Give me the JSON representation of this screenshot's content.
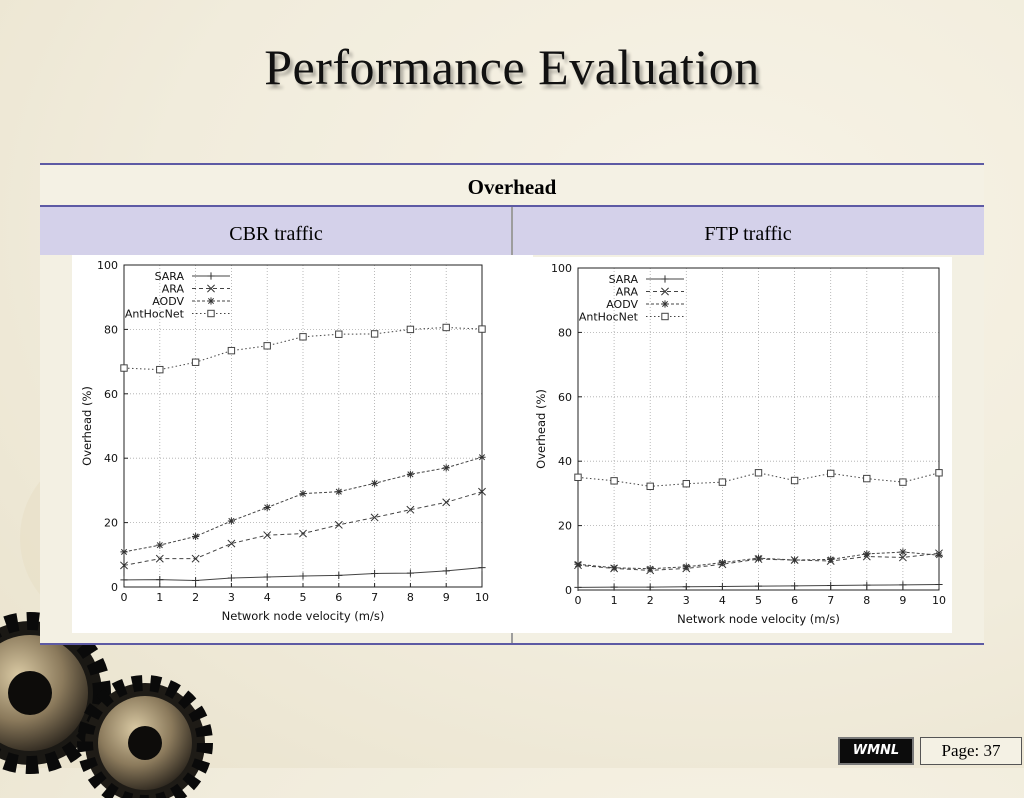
{
  "slide": {
    "title": "Performance Evaluation"
  },
  "table": {
    "header": "Overhead",
    "col_left": "CBR traffic",
    "col_right": "FTP traffic"
  },
  "footer": {
    "logo": "WMNL",
    "page": "Page: 37"
  },
  "chart_data": [
    {
      "type": "line",
      "xlabel": "Network node velocity (m/s)",
      "ylabel": "Overhead (%)",
      "xlim": [
        0,
        10
      ],
      "ylim": [
        0,
        100
      ],
      "xticks": [
        "0",
        "1",
        "2",
        "3",
        "4",
        "5",
        "6",
        "7",
        "8",
        "9",
        "10"
      ],
      "yticks": [
        "0",
        "20",
        "40",
        "60",
        "80",
        "100"
      ],
      "grid": true,
      "legend": "top-left",
      "x": [
        0,
        1,
        2,
        3,
        4,
        5,
        6,
        7,
        8,
        9,
        10
      ],
      "series": [
        {
          "name": "SARA",
          "marker": "plus",
          "values": [
            2.2,
            2.3,
            2.0,
            2.8,
            3.1,
            3.4,
            3.6,
            4.2,
            4.3,
            5.0,
            6.0
          ]
        },
        {
          "name": "ARA",
          "marker": "x",
          "values": [
            6.7,
            8.8,
            8.8,
            13.5,
            16.1,
            16.6,
            19.3,
            21.6,
            24.0,
            26.3,
            29.6
          ]
        },
        {
          "name": "AODV",
          "marker": "star",
          "values": [
            10.9,
            13.0,
            15.7,
            20.5,
            24.7,
            29.0,
            29.6,
            32.2,
            35.0,
            37.0,
            40.3
          ]
        },
        {
          "name": "AntHocNet",
          "marker": "square",
          "values": [
            68.0,
            67.5,
            69.8,
            73.4,
            74.9,
            77.7,
            78.5,
            78.6,
            80.0,
            80.6,
            80.1
          ]
        }
      ]
    },
    {
      "type": "line",
      "xlabel": "Network node velocity (m/s)",
      "ylabel": "Overhead (%)",
      "xlim": [
        0,
        10
      ],
      "ylim": [
        0,
        100
      ],
      "xticks": [
        "0",
        "1",
        "2",
        "3",
        "4",
        "5",
        "6",
        "7",
        "8",
        "9",
        "10"
      ],
      "yticks": [
        "0",
        "20",
        "40",
        "60",
        "80",
        "100"
      ],
      "grid": true,
      "legend": "top-left",
      "x": [
        0,
        1,
        2,
        3,
        4,
        5,
        6,
        7,
        8,
        9,
        10
      ],
      "series": [
        {
          "name": "SARA",
          "marker": "plus",
          "values": [
            0.8,
            0.9,
            0.9,
            1.0,
            1.1,
            1.2,
            1.3,
            1.4,
            1.5,
            1.6,
            1.7
          ]
        },
        {
          "name": "ARA",
          "marker": "x",
          "values": [
            7.7,
            6.7,
            6.1,
            6.7,
            8.0,
            9.6,
            9.3,
            9.0,
            10.4,
            10.1,
            11.4
          ]
        },
        {
          "name": "AODV",
          "marker": "star",
          "values": [
            8.0,
            6.9,
            6.6,
            7.2,
            8.5,
            9.9,
            9.3,
            9.5,
            11.2,
            11.8,
            10.8
          ]
        },
        {
          "name": "AntHocNet",
          "marker": "square",
          "values": [
            35.0,
            33.9,
            32.2,
            33.0,
            33.5,
            36.4,
            34.0,
            36.2,
            34.6,
            33.5,
            36.4
          ]
        }
      ]
    }
  ]
}
